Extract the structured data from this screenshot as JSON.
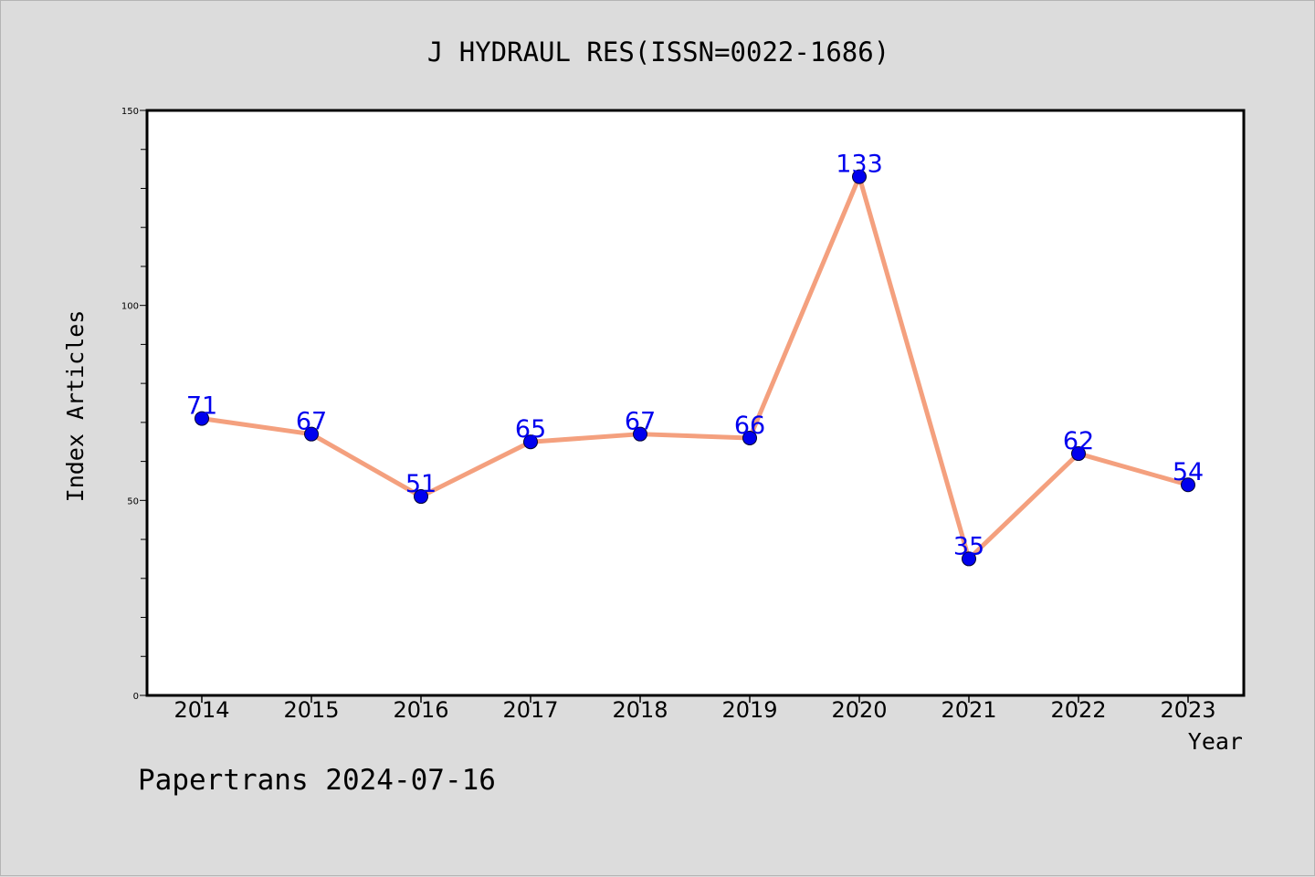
{
  "footer": "Papertrans 2024-07-16",
  "chart_data": {
    "type": "line",
    "title": "J HYDRAUL RES(ISSN=0022-1686)",
    "xlabel": "Year",
    "ylabel": "Index Articles",
    "categories": [
      "2014",
      "2015",
      "2016",
      "2017",
      "2018",
      "2019",
      "2020",
      "2021",
      "2022",
      "2023"
    ],
    "series": [
      {
        "values": [
          71,
          67,
          51,
          65,
          67,
          66,
          133,
          35,
          62,
          54
        ]
      }
    ],
    "ylim": [
      0,
      150
    ],
    "yticks_major": [
      0,
      50,
      100,
      150
    ],
    "yticks_minor_step": 10,
    "grid": false,
    "data_labels": true,
    "colors": {
      "line": "#F4A07E",
      "marker": "#0000EE",
      "marker_edge": "#000033",
      "data_label": "#0000EE",
      "plot_bg": "#FFFFFF",
      "page_bg": "#DCDCDC"
    }
  }
}
